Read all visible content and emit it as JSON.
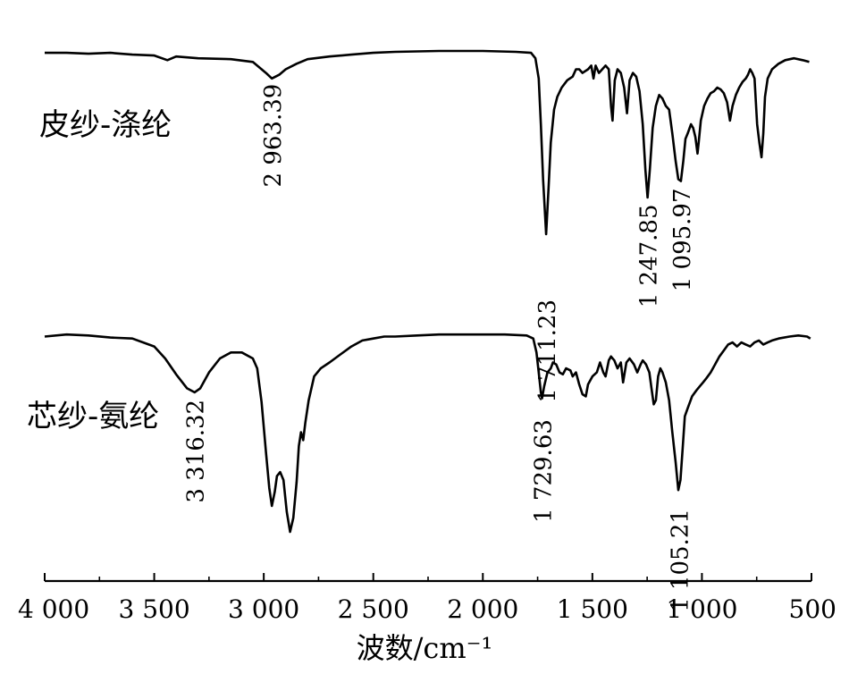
{
  "chart_data": {
    "type": "line",
    "xlabel": "波数/cm⁻¹",
    "xlim": [
      4000,
      500
    ],
    "x_reversed": true,
    "y_units": "transmittance (arbitrary, curves stacked vertically)",
    "grid": false,
    "ticks": [
      {
        "value": 4000,
        "label": "4 000"
      },
      {
        "value": 3500,
        "label": "3 500"
      },
      {
        "value": 3000,
        "label": "3 000"
      },
      {
        "value": 2500,
        "label": "2 500"
      },
      {
        "value": 2000,
        "label": "2 000"
      },
      {
        "value": 1500,
        "label": "1 500"
      },
      {
        "value": 1000,
        "label": "1 000"
      },
      {
        "value": 500,
        "label": "500"
      }
    ],
    "series": [
      {
        "name": "皮纱-涤纶",
        "color": "#000000",
        "points": [
          [
            4000,
            0.99
          ],
          [
            3900,
            0.99
          ],
          [
            3800,
            0.985
          ],
          [
            3700,
            0.99
          ],
          [
            3600,
            0.98
          ],
          [
            3500,
            0.975
          ],
          [
            3440,
            0.95
          ],
          [
            3400,
            0.97
          ],
          [
            3300,
            0.96
          ],
          [
            3150,
            0.955
          ],
          [
            3050,
            0.94
          ],
          [
            2990,
            0.88
          ],
          [
            2963,
            0.85
          ],
          [
            2930,
            0.87
          ],
          [
            2900,
            0.9
          ],
          [
            2850,
            0.93
          ],
          [
            2800,
            0.955
          ],
          [
            2700,
            0.97
          ],
          [
            2600,
            0.98
          ],
          [
            2500,
            0.99
          ],
          [
            2400,
            0.995
          ],
          [
            2200,
            1.0
          ],
          [
            2000,
            1.0
          ],
          [
            1850,
            0.995
          ],
          [
            1780,
            0.99
          ],
          [
            1760,
            0.96
          ],
          [
            1745,
            0.85
          ],
          [
            1735,
            0.6
          ],
          [
            1725,
            0.3
          ],
          [
            1711,
            0.0
          ],
          [
            1700,
            0.25
          ],
          [
            1690,
            0.5
          ],
          [
            1675,
            0.68
          ],
          [
            1660,
            0.75
          ],
          [
            1640,
            0.8
          ],
          [
            1615,
            0.84
          ],
          [
            1590,
            0.86
          ],
          [
            1575,
            0.9
          ],
          [
            1560,
            0.9
          ],
          [
            1545,
            0.88
          ],
          [
            1520,
            0.9
          ],
          [
            1505,
            0.92
          ],
          [
            1495,
            0.85
          ],
          [
            1485,
            0.92
          ],
          [
            1470,
            0.88
          ],
          [
            1455,
            0.9
          ],
          [
            1440,
            0.92
          ],
          [
            1425,
            0.9
          ],
          [
            1415,
            0.7
          ],
          [
            1408,
            0.62
          ],
          [
            1398,
            0.84
          ],
          [
            1385,
            0.9
          ],
          [
            1370,
            0.88
          ],
          [
            1355,
            0.8
          ],
          [
            1342,
            0.66
          ],
          [
            1330,
            0.84
          ],
          [
            1315,
            0.88
          ],
          [
            1300,
            0.86
          ],
          [
            1285,
            0.78
          ],
          [
            1270,
            0.6
          ],
          [
            1258,
            0.35
          ],
          [
            1248,
            0.2
          ],
          [
            1238,
            0.35
          ],
          [
            1225,
            0.58
          ],
          [
            1210,
            0.7
          ],
          [
            1195,
            0.76
          ],
          [
            1180,
            0.74
          ],
          [
            1165,
            0.7
          ],
          [
            1150,
            0.68
          ],
          [
            1135,
            0.55
          ],
          [
            1120,
            0.4
          ],
          [
            1108,
            0.3
          ],
          [
            1096,
            0.29
          ],
          [
            1085,
            0.4
          ],
          [
            1075,
            0.52
          ],
          [
            1065,
            0.55
          ],
          [
            1050,
            0.6
          ],
          [
            1040,
            0.58
          ],
          [
            1030,
            0.53
          ],
          [
            1020,
            0.44
          ],
          [
            1015,
            0.5
          ],
          [
            1005,
            0.62
          ],
          [
            990,
            0.7
          ],
          [
            975,
            0.74
          ],
          [
            960,
            0.77
          ],
          [
            945,
            0.78
          ],
          [
            930,
            0.8
          ],
          [
            915,
            0.79
          ],
          [
            900,
            0.77
          ],
          [
            885,
            0.72
          ],
          [
            872,
            0.62
          ],
          [
            860,
            0.7
          ],
          [
            845,
            0.76
          ],
          [
            830,
            0.8
          ],
          [
            815,
            0.83
          ],
          [
            800,
            0.85
          ],
          [
            790,
            0.87
          ],
          [
            780,
            0.9
          ],
          [
            770,
            0.88
          ],
          [
            760,
            0.85
          ],
          [
            748,
            0.6
          ],
          [
            738,
            0.5
          ],
          [
            728,
            0.42
          ],
          [
            720,
            0.55
          ],
          [
            712,
            0.75
          ],
          [
            700,
            0.85
          ],
          [
            680,
            0.9
          ],
          [
            650,
            0.93
          ],
          [
            620,
            0.95
          ],
          [
            580,
            0.96
          ],
          [
            540,
            0.95
          ],
          [
            510,
            0.94
          ]
        ],
        "annotations": [
          {
            "x": 2963.39,
            "label": "2 963.39"
          },
          {
            "x": 1711.23,
            "label": "1 711.23"
          },
          {
            "x": 1247.85,
            "label": "1 247.85"
          },
          {
            "x": 1095.97,
            "label": "1 095.97"
          }
        ]
      },
      {
        "name": "芯纱-氨纶",
        "color": "#000000",
        "points": [
          [
            4000,
            0.98
          ],
          [
            3900,
            0.99
          ],
          [
            3800,
            0.985
          ],
          [
            3700,
            0.975
          ],
          [
            3600,
            0.97
          ],
          [
            3500,
            0.93
          ],
          [
            3450,
            0.87
          ],
          [
            3400,
            0.79
          ],
          [
            3350,
            0.72
          ],
          [
            3316,
            0.7
          ],
          [
            3290,
            0.72
          ],
          [
            3250,
            0.8
          ],
          [
            3200,
            0.87
          ],
          [
            3150,
            0.9
          ],
          [
            3100,
            0.9
          ],
          [
            3050,
            0.87
          ],
          [
            3030,
            0.82
          ],
          [
            3010,
            0.65
          ],
          [
            2990,
            0.4
          ],
          [
            2975,
            0.22
          ],
          [
            2963,
            0.13
          ],
          [
            2950,
            0.2
          ],
          [
            2940,
            0.28
          ],
          [
            2925,
            0.3
          ],
          [
            2910,
            0.26
          ],
          [
            2895,
            0.1
          ],
          [
            2880,
            0.0
          ],
          [
            2865,
            0.07
          ],
          [
            2850,
            0.25
          ],
          [
            2840,
            0.43
          ],
          [
            2830,
            0.5
          ],
          [
            2820,
            0.46
          ],
          [
            2810,
            0.55
          ],
          [
            2795,
            0.66
          ],
          [
            2770,
            0.78
          ],
          [
            2740,
            0.82
          ],
          [
            2700,
            0.85
          ],
          [
            2650,
            0.89
          ],
          [
            2600,
            0.93
          ],
          [
            2550,
            0.96
          ],
          [
            2500,
            0.97
          ],
          [
            2450,
            0.98
          ],
          [
            2400,
            0.98
          ],
          [
            2300,
            0.985
          ],
          [
            2200,
            0.99
          ],
          [
            2000,
            0.99
          ],
          [
            1900,
            0.99
          ],
          [
            1800,
            0.985
          ],
          [
            1770,
            0.97
          ],
          [
            1755,
            0.9
          ],
          [
            1745,
            0.8
          ],
          [
            1735,
            0.7
          ],
          [
            1730,
            0.67
          ],
          [
            1720,
            0.73
          ],
          [
            1705,
            0.8
          ],
          [
            1690,
            0.82
          ],
          [
            1680,
            0.85
          ],
          [
            1665,
            0.84
          ],
          [
            1650,
            0.8
          ],
          [
            1635,
            0.79
          ],
          [
            1620,
            0.82
          ],
          [
            1600,
            0.81
          ],
          [
            1590,
            0.78
          ],
          [
            1575,
            0.8
          ],
          [
            1560,
            0.74
          ],
          [
            1545,
            0.69
          ],
          [
            1530,
            0.68
          ],
          [
            1520,
            0.74
          ],
          [
            1500,
            0.78
          ],
          [
            1480,
            0.8
          ],
          [
            1465,
            0.85
          ],
          [
            1450,
            0.8
          ],
          [
            1440,
            0.78
          ],
          [
            1425,
            0.86
          ],
          [
            1415,
            0.88
          ],
          [
            1400,
            0.86
          ],
          [
            1385,
            0.82
          ],
          [
            1370,
            0.85
          ],
          [
            1360,
            0.75
          ],
          [
            1345,
            0.85
          ],
          [
            1330,
            0.87
          ],
          [
            1310,
            0.84
          ],
          [
            1295,
            0.8
          ],
          [
            1280,
            0.84
          ],
          [
            1270,
            0.86
          ],
          [
            1255,
            0.84
          ],
          [
            1240,
            0.8
          ],
          [
            1230,
            0.72
          ],
          [
            1220,
            0.64
          ],
          [
            1210,
            0.66
          ],
          [
            1200,
            0.78
          ],
          [
            1190,
            0.82
          ],
          [
            1180,
            0.8
          ],
          [
            1165,
            0.75
          ],
          [
            1150,
            0.66
          ],
          [
            1135,
            0.5
          ],
          [
            1120,
            0.35
          ],
          [
            1108,
            0.21
          ],
          [
            1098,
            0.26
          ],
          [
            1088,
            0.42
          ],
          [
            1078,
            0.58
          ],
          [
            1065,
            0.62
          ],
          [
            1045,
            0.68
          ],
          [
            1025,
            0.71
          ],
          [
            1010,
            0.73
          ],
          [
            995,
            0.75
          ],
          [
            980,
            0.77
          ],
          [
            960,
            0.8
          ],
          [
            940,
            0.84
          ],
          [
            920,
            0.88
          ],
          [
            900,
            0.91
          ],
          [
            880,
            0.94
          ],
          [
            860,
            0.95
          ],
          [
            840,
            0.93
          ],
          [
            820,
            0.95
          ],
          [
            800,
            0.94
          ],
          [
            780,
            0.93
          ],
          [
            760,
            0.95
          ],
          [
            740,
            0.96
          ],
          [
            720,
            0.94
          ],
          [
            700,
            0.95
          ],
          [
            680,
            0.96
          ],
          [
            650,
            0.97
          ],
          [
            600,
            0.98
          ],
          [
            560,
            0.985
          ],
          [
            520,
            0.98
          ],
          [
            505,
            0.97
          ]
        ],
        "annotations": [
          {
            "x": 3316.32,
            "label": "3 316.32"
          },
          {
            "x": 1729.63,
            "label": "1 729.63"
          },
          {
            "x": 1105.21,
            "label": "1 105.21"
          }
        ]
      }
    ]
  }
}
